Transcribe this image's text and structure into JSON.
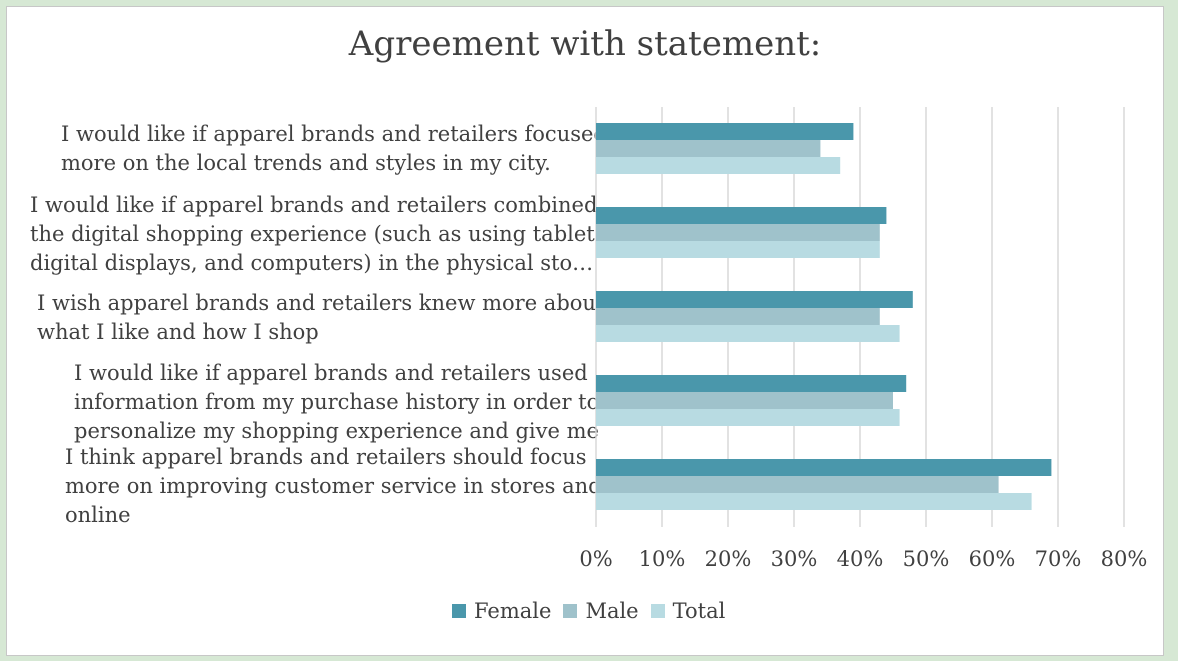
{
  "chart_data": {
    "type": "bar",
    "orientation": "horizontal",
    "title": "Agreement with statement:",
    "categories": [
      "I would like if apparel brands and retailers focused\nmore on the local trends and styles in my city.",
      "I would like if apparel brands and retailers combined\nthe digital shopping experience (such as using tablets,\ndigital displays, and computers) in the physical sto…",
      "I wish apparel brands and retailers knew more about\nwhat I like and how I shop",
      "I would like if apparel brands and retailers used\ninformation from my purchase history in order to\npersonalize my shopping experience and give me",
      "I think apparel brands and retailers should focus\nmore on improving customer service in stores and\nonline"
    ],
    "series": [
      {
        "name": "Female",
        "color": "#4a97ab",
        "values": [
          39,
          44,
          48,
          47,
          69
        ]
      },
      {
        "name": "Male",
        "color": "#9fc2cb",
        "values": [
          34,
          43,
          43,
          45,
          61
        ]
      },
      {
        "name": "Total",
        "color": "#b8dbe2",
        "values": [
          37,
          43,
          46,
          46,
          66
        ]
      }
    ],
    "xlim": [
      0,
      80
    ],
    "xticks": [
      "0%",
      "10%",
      "20%",
      "30%",
      "40%",
      "50%",
      "60%",
      "70%",
      "80%"
    ],
    "grid": true,
    "legend": "bottom"
  }
}
